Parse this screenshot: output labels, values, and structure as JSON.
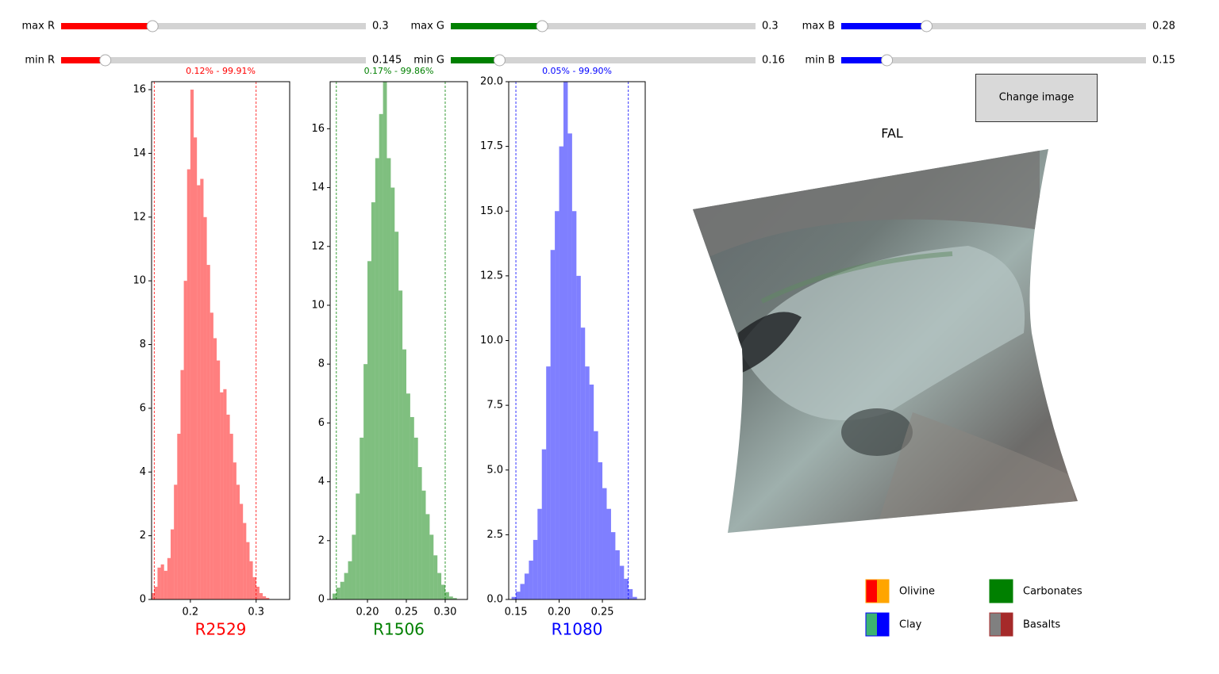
{
  "sliders": [
    {
      "label": "max R",
      "value": 0.3,
      "range": [
        0,
        1
      ],
      "color": "#ff0000"
    },
    {
      "label": "min R",
      "value": 0.145,
      "range": [
        0,
        1
      ],
      "color": "#ff0000"
    },
    {
      "label": "max G",
      "value": 0.3,
      "range": [
        0,
        1
      ],
      "color": "#008000"
    },
    {
      "label": "min G",
      "value": 0.16,
      "range": [
        0,
        1
      ],
      "color": "#008000"
    },
    {
      "label": "max B",
      "value": 0.28,
      "range": [
        0,
        1
      ],
      "color": "#0000ff"
    },
    {
      "label": "min B",
      "value": 0.15,
      "range": [
        0,
        1
      ],
      "color": "#0000ff"
    }
  ],
  "chart_data": [
    {
      "type": "histogram",
      "title": "0.12% - 99.91%",
      "xlabel": "R2529",
      "color": "#ff0000",
      "bins": [
        0.14,
        0.145,
        0.15,
        0.155,
        0.16,
        0.165,
        0.17,
        0.175,
        0.18,
        0.185,
        0.19,
        0.195,
        0.2,
        0.205,
        0.21,
        0.215,
        0.22,
        0.225,
        0.23,
        0.235,
        0.24,
        0.245,
        0.25,
        0.255,
        0.26,
        0.265,
        0.27,
        0.275,
        0.28,
        0.285,
        0.29,
        0.295,
        0.3,
        0.305,
        0.31,
        0.315,
        0.32
      ],
      "values": [
        0.2,
        0.4,
        1.0,
        1.1,
        0.9,
        1.3,
        2.2,
        3.6,
        5.2,
        7.2,
        10.0,
        13.5,
        16.0,
        14.5,
        13.0,
        13.2,
        12.0,
        10.5,
        9.0,
        8.2,
        7.5,
        6.5,
        6.6,
        5.8,
        5.2,
        4.3,
        3.6,
        3.0,
        2.4,
        1.8,
        1.2,
        0.7,
        0.4,
        0.2,
        0.1,
        0.05
      ],
      "xlim": [
        0.141,
        0.351
      ],
      "ylim": [
        0,
        16.25
      ],
      "xticks": [
        0.2,
        0.3
      ],
      "yticks": [
        0,
        2,
        4,
        6,
        8,
        10,
        12,
        14,
        16
      ],
      "vlines": [
        0.145,
        0.3
      ]
    },
    {
      "type": "histogram",
      "title": "0.17% - 99.86%",
      "xlabel": "R1506",
      "color": "#008000",
      "bins": [
        0.155,
        0.16,
        0.165,
        0.17,
        0.175,
        0.18,
        0.185,
        0.19,
        0.195,
        0.2,
        0.205,
        0.21,
        0.215,
        0.22,
        0.225,
        0.23,
        0.235,
        0.24,
        0.245,
        0.25,
        0.255,
        0.26,
        0.265,
        0.27,
        0.275,
        0.28,
        0.285,
        0.29,
        0.295,
        0.3,
        0.305,
        0.31,
        0.315
      ],
      "values": [
        0.2,
        0.4,
        0.6,
        0.9,
        1.3,
        2.2,
        3.6,
        5.5,
        8.0,
        11.5,
        13.5,
        15.0,
        16.5,
        17.6,
        15.0,
        14.0,
        12.5,
        10.5,
        8.5,
        7.0,
        6.2,
        5.5,
        4.5,
        3.7,
        2.9,
        2.2,
        1.5,
        0.9,
        0.5,
        0.25,
        0.1,
        0.05
      ],
      "xlim": [
        0.152,
        0.3286
      ],
      "ylim": [
        0,
        17.6
      ],
      "xticks": [
        {
          "value": 0.2,
          "label": "0.20"
        },
        {
          "value": 0.25,
          "label": "0.25"
        },
        {
          "value": 0.3,
          "label": "0.30"
        }
      ],
      "yticks": [
        0,
        2,
        4,
        6,
        8,
        10,
        12,
        14,
        16
      ],
      "vlines": [
        0.16,
        0.3
      ]
    },
    {
      "type": "histogram",
      "title": "0.05% - 99.90%",
      "xlabel": "R1080",
      "color": "#0000ff",
      "bins": [
        0.145,
        0.15,
        0.155,
        0.16,
        0.165,
        0.17,
        0.175,
        0.18,
        0.185,
        0.19,
        0.195,
        0.2,
        0.205,
        0.21,
        0.215,
        0.22,
        0.225,
        0.23,
        0.235,
        0.24,
        0.245,
        0.25,
        0.255,
        0.26,
        0.265,
        0.27,
        0.275,
        0.28,
        0.285,
        0.29
      ],
      "values": [
        0.1,
        0.3,
        0.6,
        1.0,
        1.5,
        2.3,
        3.5,
        5.8,
        9.0,
        13.5,
        15.0,
        17.5,
        20.0,
        18.0,
        15.0,
        12.5,
        10.5,
        9.0,
        8.3,
        6.5,
        5.3,
        4.3,
        3.5,
        2.6,
        1.9,
        1.3,
        0.8,
        0.4,
        0.1
      ],
      "xlim": [
        0.1417,
        0.2995
      ],
      "ylim": [
        0,
        20
      ],
      "xticks": [
        {
          "value": 0.15,
          "label": "0.15"
        },
        {
          "value": 0.2,
          "label": "0.20"
        },
        {
          "value": 0.25,
          "label": "0.25"
        }
      ],
      "yticks": [
        {
          "value": 0,
          "label": "0.0"
        },
        {
          "value": 2.5,
          "label": "2.5"
        },
        {
          "value": 5,
          "label": "5.0"
        },
        {
          "value": 7.5,
          "label": "7.5"
        },
        {
          "value": 10,
          "label": "10.0"
        },
        {
          "value": 12.5,
          "label": "12.5"
        },
        {
          "value": 15,
          "label": "15.0"
        },
        {
          "value": 17.5,
          "label": "17.5"
        },
        {
          "value": 20,
          "label": "20.0"
        }
      ],
      "vlines": [
        0.15,
        0.28
      ]
    }
  ],
  "image": {
    "title": "FAL"
  },
  "button": {
    "label": "Change image"
  },
  "legend": [
    {
      "label": "Olivine",
      "colors": [
        "#ff0000",
        "#ffa500"
      ]
    },
    {
      "label": "Clay",
      "colors": [
        "#3cb371",
        "#0000ff"
      ]
    },
    {
      "label": "Carbonates",
      "colors": [
        "#008000",
        "#008000"
      ]
    },
    {
      "label": "Basalts",
      "colors": [
        "#808080",
        "#a52a2a"
      ]
    }
  ]
}
